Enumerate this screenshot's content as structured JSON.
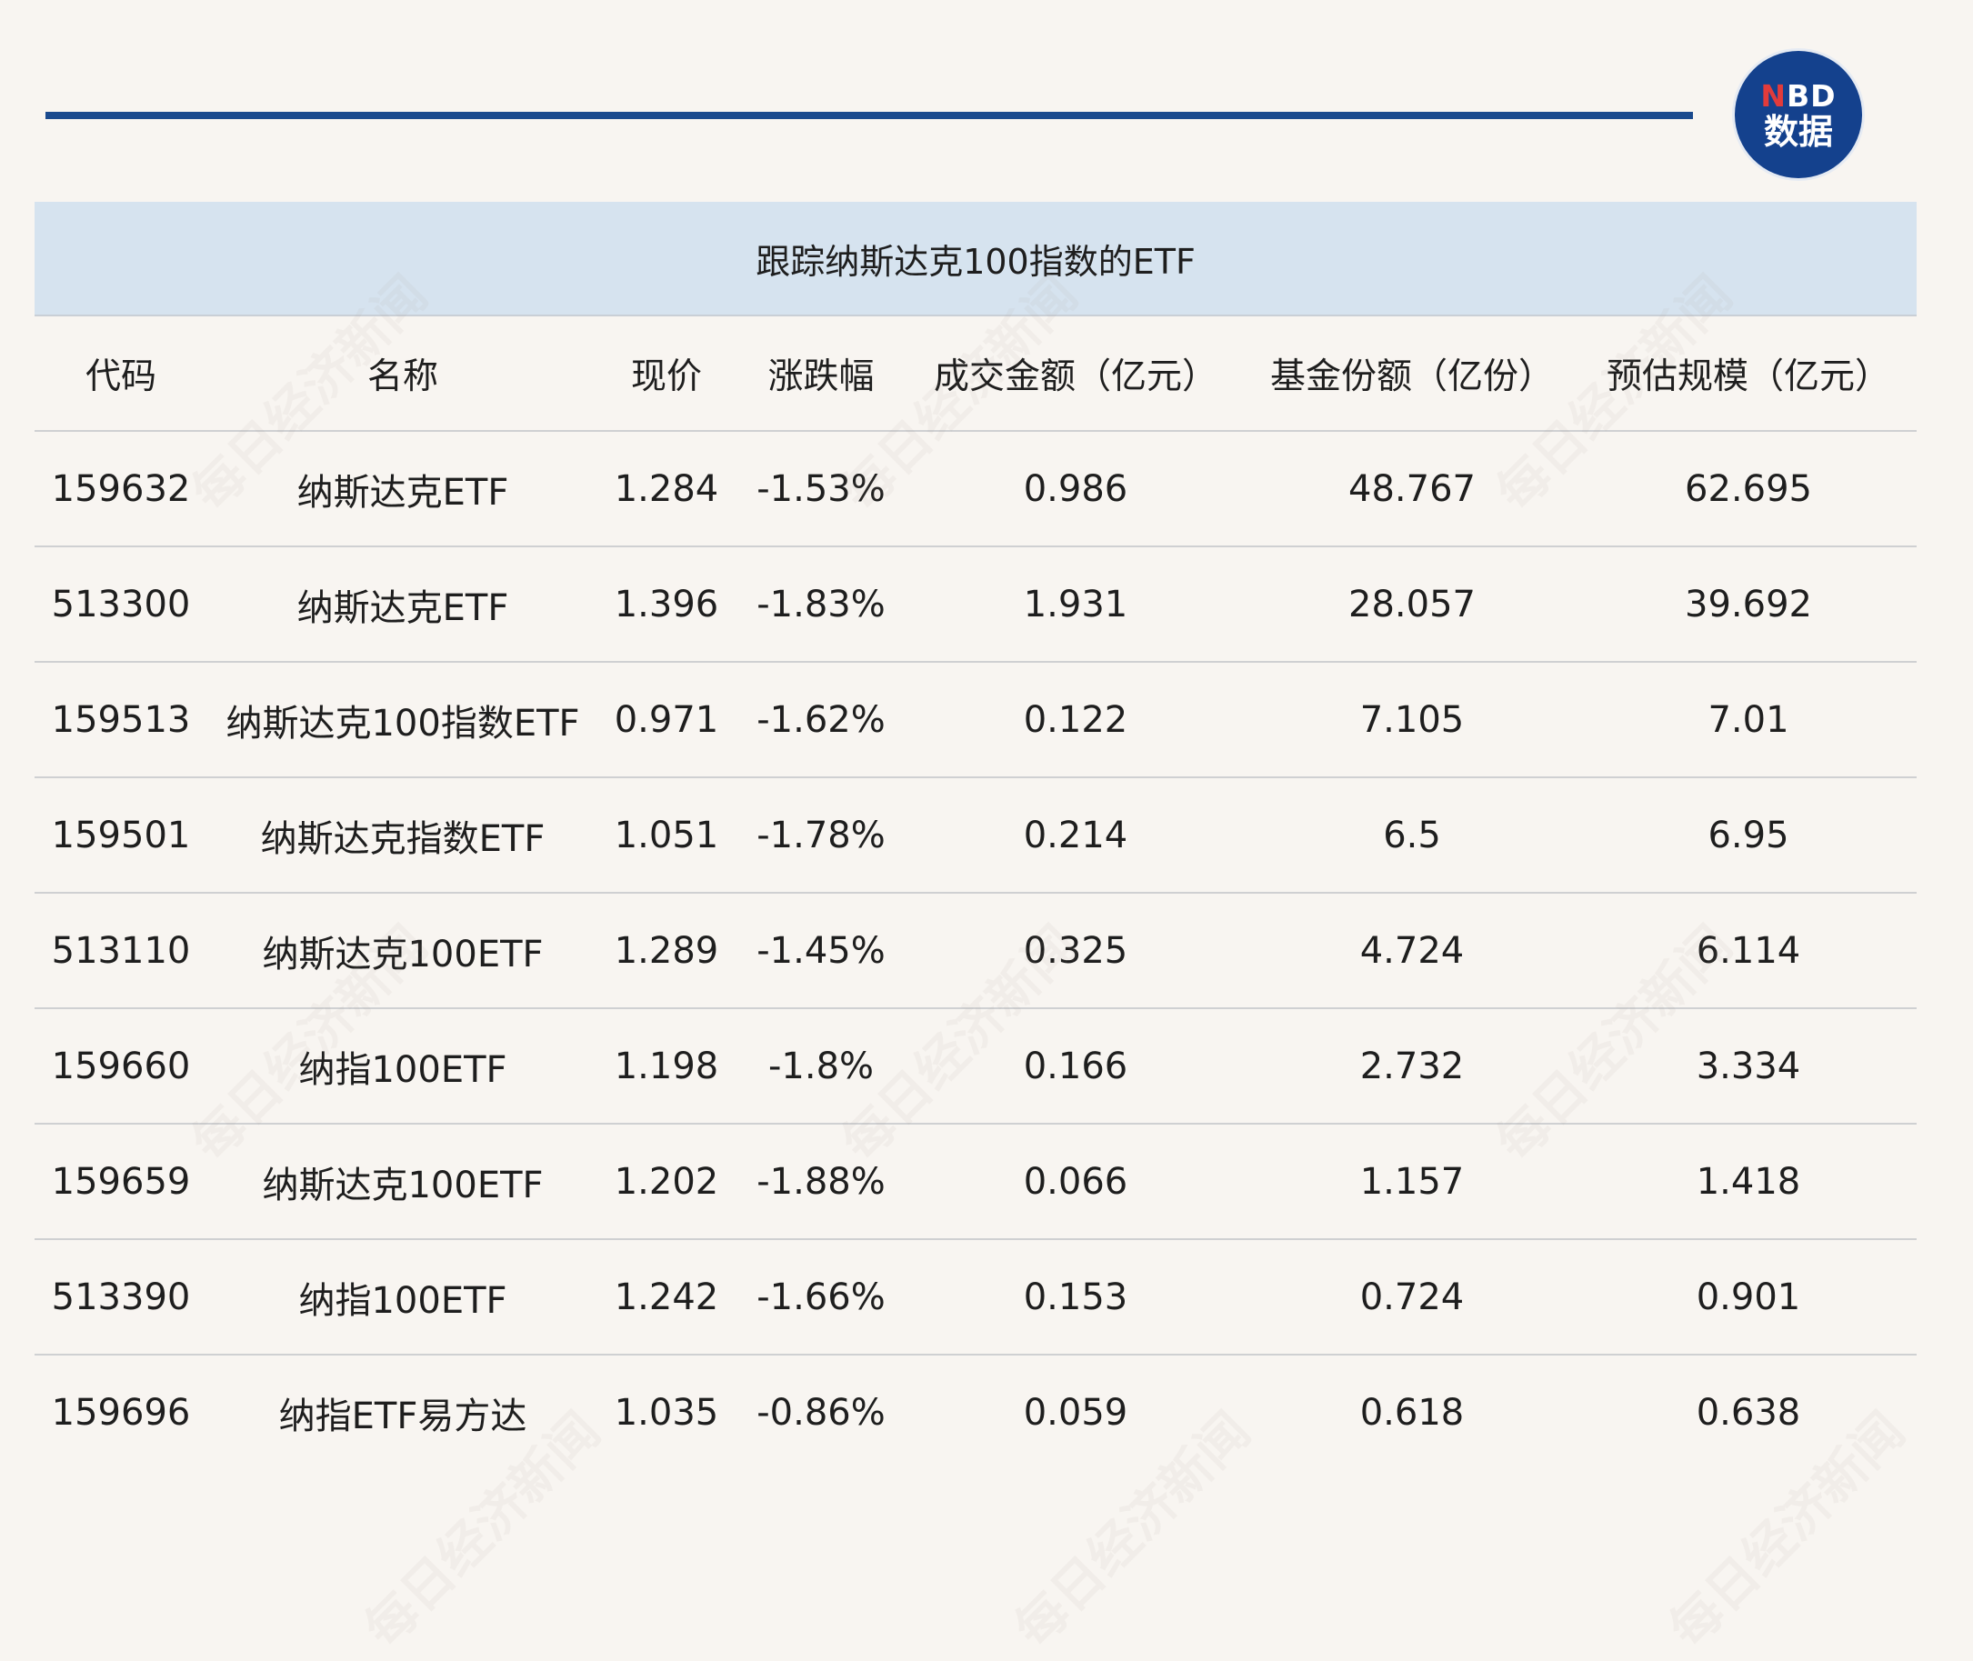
{
  "logo": {
    "line1": "NBD",
    "line2": "数据"
  },
  "table": {
    "title": "跟踪纳斯达克100指数的ETF",
    "headers": [
      "代码",
      "名称",
      "现价",
      "涨跌幅",
      "成交金额（亿元）",
      "基金份额（亿份）",
      "预估规模（亿元）"
    ],
    "rows": [
      [
        "159632",
        "纳斯达克ETF",
        "1.284",
        "-1.53%",
        "0.986",
        "48.767",
        "62.695"
      ],
      [
        "513300",
        "纳斯达克ETF",
        "1.396",
        "-1.83%",
        "1.931",
        "28.057",
        "39.692"
      ],
      [
        "159513",
        "纳斯达克100指数ETF",
        "0.971",
        "-1.62%",
        "0.122",
        "7.105",
        "7.01"
      ],
      [
        "159501",
        "纳斯达克指数ETF",
        "1.051",
        "-1.78%",
        "0.214",
        "6.5",
        "6.95"
      ],
      [
        "513110",
        "纳斯达克100ETF",
        "1.289",
        "-1.45%",
        "0.325",
        "4.724",
        "6.114"
      ],
      [
        "159660",
        "纳指100ETF",
        "1.198",
        "-1.8%",
        "0.166",
        "2.732",
        "3.334"
      ],
      [
        "159659",
        "纳斯达克100ETF",
        "1.202",
        "-1.88%",
        "0.066",
        "1.157",
        "1.418"
      ],
      [
        "513390",
        "纳指100ETF",
        "1.242",
        "-1.66%",
        "0.153",
        "0.724",
        "0.901"
      ],
      [
        "159696",
        "纳指ETF易方达",
        "1.035",
        "-0.86%",
        "0.059",
        "0.618",
        "0.638"
      ]
    ]
  },
  "watermark": "每日经济新闻"
}
